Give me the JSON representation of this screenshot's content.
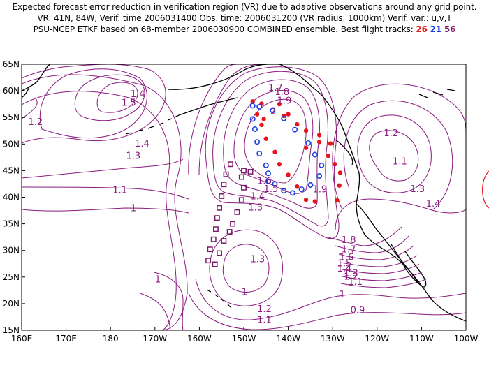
{
  "title": {
    "line1": "Expected forecast error reduction in verification region (VR) due to adaptive observations around any grid point.",
    "line2": "VR: 41N, 84W, Verif. time 2006031400  Obs. time: 2006031200 (VR radius: 1000km)  Verif. var.: u,v,T",
    "line3_prefix": "PSU-NCEP ETKF based on 68-member 2006030900 COMBINED ensemble.  Best flight tracks:",
    "track_red": "26",
    "track_blue": "21",
    "track_purple": "56"
  },
  "colors": {
    "contour": "#8b1a7e",
    "coast": "#000000",
    "red": "#e8141b",
    "blue": "#1d3fe0",
    "purple": "#7a1a6a"
  },
  "axes": {
    "lat_labels": [
      "65N",
      "60N",
      "55N",
      "50N",
      "45N",
      "40N",
      "35N",
      "30N",
      "25N",
      "20N",
      "15N"
    ],
    "lon_labels": [
      "160E",
      "170E",
      "180",
      "170W",
      "160W",
      "150W",
      "140W",
      "130W",
      "120W",
      "110W",
      "100W"
    ]
  },
  "contour_labels": [
    {
      "t": "1.4",
      "lon": -175.5,
      "lat": 58.8
    },
    {
      "t": "1.5",
      "lon": -177.5,
      "lat": 57.2
    },
    {
      "t": "1.2",
      "lon": 161.5,
      "lat": 53.6
    },
    {
      "t": "1.4",
      "lon": -174.5,
      "lat": 49.5
    },
    {
      "t": "1.3",
      "lon": -176.5,
      "lat": 47.2
    },
    {
      "t": "1.1",
      "lon": -179.5,
      "lat": 40.8
    },
    {
      "t": "1",
      "lon": -175.5,
      "lat": 37.4
    },
    {
      "t": "1.7",
      "lon": -144.5,
      "lat": 60.0
    },
    {
      "t": "1.8",
      "lon": -143.0,
      "lat": 59.2
    },
    {
      "t": "1.9",
      "lon": -142.5,
      "lat": 57.6
    },
    {
      "t": "2",
      "lon": -144.0,
      "lat": 55.6
    },
    {
      "t": "1.2",
      "lon": -118.5,
      "lat": 51.5
    },
    {
      "t": "1.1",
      "lon": -116.5,
      "lat": 46.2
    },
    {
      "t": "1.3",
      "lon": -112.5,
      "lat": 41.0
    },
    {
      "t": "1.4",
      "lon": -109.0,
      "lat": 38.2
    },
    {
      "t": "1.6",
      "lon": -147.0,
      "lat": 42.5
    },
    {
      "t": "1.5",
      "lon": -145.5,
      "lat": 41.0
    },
    {
      "t": "1.4",
      "lon": -148.5,
      "lat": 39.6
    },
    {
      "t": "1.3",
      "lon": -149.0,
      "lat": 37.5
    },
    {
      "t": "1.9",
      "lon": -134.5,
      "lat": 40.9
    },
    {
      "t": "1.8",
      "lon": -128.0,
      "lat": 31.4
    },
    {
      "t": "1.7",
      "lon": -128.0,
      "lat": 29.6
    },
    {
      "t": "1.6",
      "lon": -128.5,
      "lat": 28.2
    },
    {
      "t": "1.5",
      "lon": -129.0,
      "lat": 27.0
    },
    {
      "t": "1.4",
      "lon": -129.0,
      "lat": 26.0
    },
    {
      "t": "1.3",
      "lon": -127.5,
      "lat": 25.2
    },
    {
      "t": "1.2",
      "lon": -127.5,
      "lat": 24.5
    },
    {
      "t": "1.1",
      "lon": -126.5,
      "lat": 23.5
    },
    {
      "t": "1.3",
      "lon": -148.5,
      "lat": 27.8
    },
    {
      "t": "1",
      "lon": -128.5,
      "lat": 21.2
    },
    {
      "t": "1",
      "lon": -170.0,
      "lat": 24.0
    },
    {
      "t": "1.2",
      "lon": -147.0,
      "lat": 18.4
    },
    {
      "t": "1.1",
      "lon": -147.0,
      "lat": 16.4
    },
    {
      "t": "0.9",
      "lon": -126.0,
      "lat": 18.2
    },
    {
      "t": "1",
      "lon": -150.5,
      "lat": 21.6
    }
  ],
  "tracks": {
    "red": [
      [
        -148,
        58.0
      ],
      [
        -146,
        57.6
      ],
      [
        -147,
        55.6
      ],
      [
        -146,
        53.6
      ],
      [
        -145,
        51.0
      ],
      [
        -143,
        48.5
      ],
      [
        -142,
        46.2
      ],
      [
        -140,
        44.2
      ],
      [
        -138,
        42.0
      ],
      [
        -136,
        39.5
      ],
      [
        -134,
        39.2
      ],
      [
        -129,
        39.4
      ],
      [
        -128.5,
        42.2
      ],
      [
        -128.3,
        44.6
      ],
      [
        -129.5,
        46.2
      ],
      [
        -131,
        47.8
      ],
      [
        -133,
        50.4
      ],
      [
        -136,
        52.5
      ],
      [
        -138,
        53.7
      ],
      [
        -140,
        55.6
      ],
      [
        -142,
        57.5
      ],
      [
        -145.5,
        54.7
      ],
      [
        -136,
        49.3
      ],
      [
        -133,
        51.7
      ],
      [
        -130.5,
        50.1
      ],
      [
        -141,
        55.3
      ]
    ],
    "blue": [
      [
        -148,
        57.2
      ],
      [
        -146.5,
        57.0
      ],
      [
        -148,
        54.7
      ],
      [
        -147.5,
        52.8
      ],
      [
        -147,
        50.4
      ],
      [
        -146.5,
        48.2
      ],
      [
        -145,
        46.0
      ],
      [
        -144.5,
        44.5
      ],
      [
        -143,
        42.5
      ],
      [
        -141,
        41.2
      ],
      [
        -139,
        40.8
      ],
      [
        -137,
        41.5
      ],
      [
        -135,
        42.3
      ],
      [
        -133,
        44.0
      ],
      [
        -132.5,
        46.0
      ],
      [
        -134,
        48.0
      ],
      [
        -135.5,
        50.2
      ],
      [
        -138.5,
        52.7
      ],
      [
        -141,
        54.8
      ],
      [
        -143.5,
        56.3
      ],
      [
        -144.5,
        43.0
      ]
    ],
    "purple": [
      [
        -153,
        46.2
      ],
      [
        -154,
        44.3
      ],
      [
        -154.5,
        42.4
      ],
      [
        -155,
        40.2
      ],
      [
        -155.5,
        38.0
      ],
      [
        -156,
        36.1
      ],
      [
        -156.3,
        34.0
      ],
      [
        -156.8,
        32.1
      ],
      [
        -157.6,
        30.2
      ],
      [
        -158,
        28.1
      ],
      [
        -156.5,
        27.4
      ],
      [
        -155.5,
        29.5
      ],
      [
        -154.5,
        31.8
      ],
      [
        -153.2,
        33.5
      ],
      [
        -152.5,
        35.0
      ],
      [
        -151.5,
        37.2
      ],
      [
        -150.5,
        39.5
      ],
      [
        -150,
        41.8
      ],
      [
        -150.5,
        43.8
      ],
      [
        -148.5,
        44.8
      ],
      [
        -150,
        45.0
      ]
    ]
  }
}
